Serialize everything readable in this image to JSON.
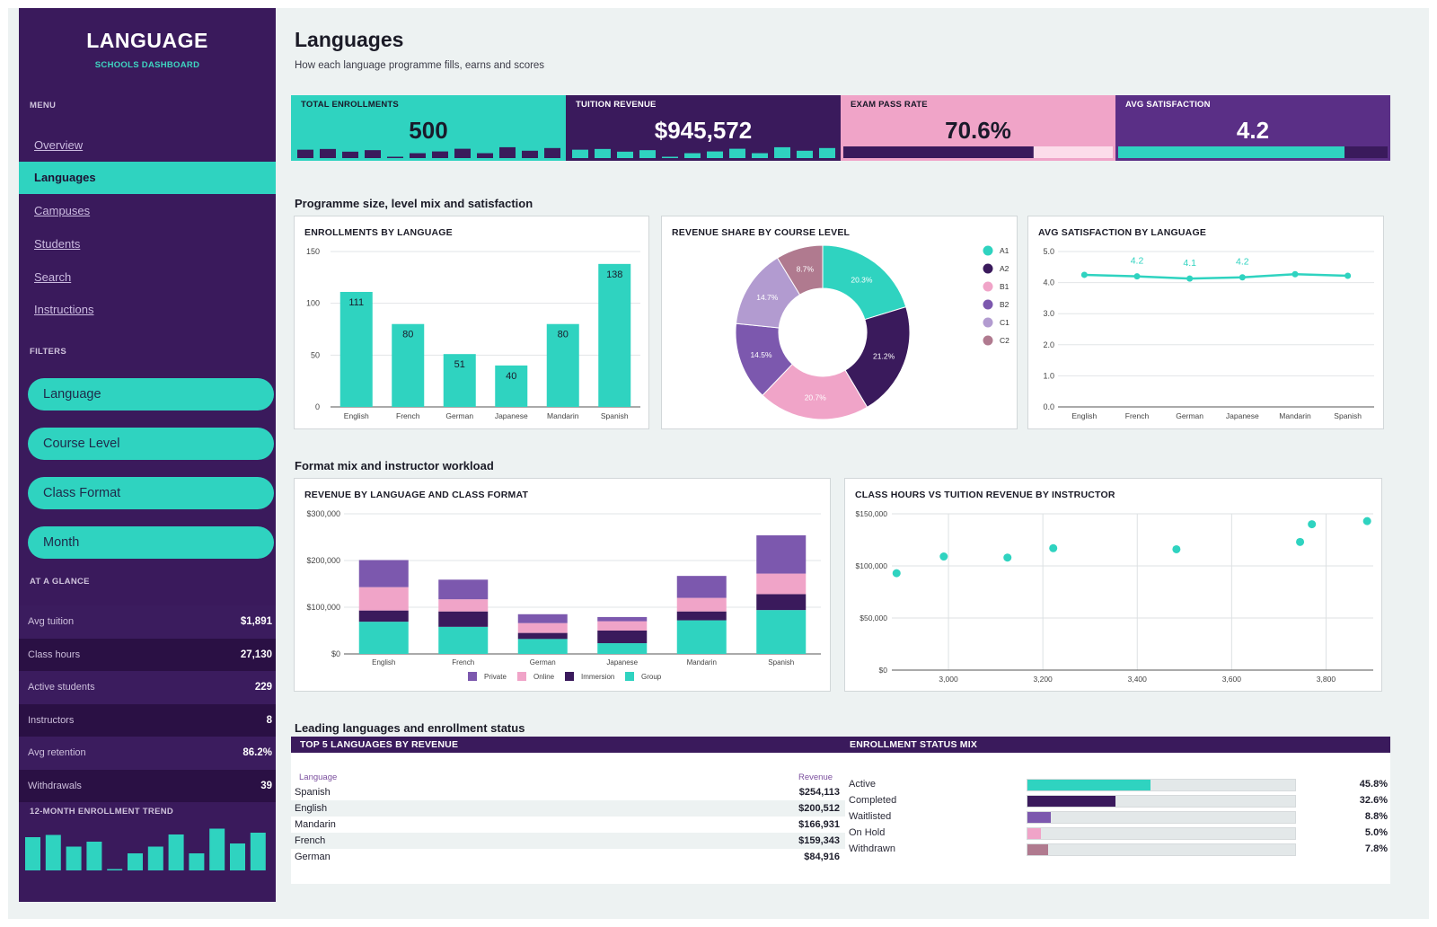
{
  "sidebar": {
    "brand": "LANGUAGE",
    "brand_sub": "SCHOOLS DASHBOARD",
    "menu_heading": "MENU",
    "nav": [
      {
        "label": "Overview",
        "active": false
      },
      {
        "label": "Languages",
        "active": true
      },
      {
        "label": "Campuses",
        "active": false
      },
      {
        "label": "Students",
        "active": false
      },
      {
        "label": "Search",
        "active": false
      },
      {
        "label": "Instructions",
        "active": false
      }
    ],
    "filters_heading": "FILTERS",
    "filters": [
      "Language",
      "Course Level",
      "Class Format",
      "Month"
    ],
    "glance_heading": "AT A GLANCE",
    "glance": [
      {
        "label": "Avg tuition",
        "value": "$1,891"
      },
      {
        "label": "Class hours",
        "value": "27,130"
      },
      {
        "label": "Active students",
        "value": "229"
      },
      {
        "label": "Instructors",
        "value": "8"
      },
      {
        "label": "Avg retention",
        "value": "86.2%"
      },
      {
        "label": "Withdrawals",
        "value": "39"
      }
    ],
    "trend_heading": "12-MONTH ENROLLMENT TREND",
    "trend_values": [
      0.74,
      0.79,
      0.53,
      0.64,
      0.02,
      0.38,
      0.53,
      0.8,
      0.38,
      0.93,
      0.6,
      0.84
    ]
  },
  "header": {
    "title": "Languages",
    "subtitle": "How each language programme fills, earns and scores"
  },
  "kpis": [
    {
      "label": "TOTAL ENROLLMENTS",
      "value": "500",
      "bg": "#2fd3c0",
      "fg": "#1a1a2a",
      "kind": "spark",
      "mark": "#3a1a5c",
      "spark": [
        0.72,
        0.78,
        0.55,
        0.68,
        0.05,
        0.42,
        0.57,
        0.8,
        0.42,
        0.93,
        0.63,
        0.86
      ]
    },
    {
      "label": "TUITION REVENUE",
      "value": "$945,572",
      "bg": "#3a1a5c",
      "fg": "#ffffff",
      "kind": "spark",
      "mark": "#2fd3c0",
      "spark": [
        0.72,
        0.78,
        0.55,
        0.68,
        0.05,
        0.42,
        0.57,
        0.8,
        0.42,
        0.93,
        0.63,
        0.86
      ]
    },
    {
      "label": "EXAM PASS RATE",
      "value": "70.6%",
      "bg": "#f0a4c8",
      "fg": "#1a1a2a",
      "kind": "progress",
      "mark": "#3a1a5c",
      "track": "#fcdcea",
      "progress": 0.706
    },
    {
      "label": "AVG SATISFACTION",
      "value": "4.2",
      "bg": "#5a2f86",
      "fg": "#ffffff",
      "kind": "progress",
      "mark": "#2fd3c0",
      "track": "#3a1a5c",
      "progress": 0.84
    }
  ],
  "sections": {
    "s1": "Programme size, level mix and satisfaction",
    "s2": "Format mix and instructor workload",
    "s3": "Leading languages and enrollment status"
  },
  "chart_data": [
    {
      "id": "enrollments",
      "type": "bar",
      "title": "ENROLLMENTS BY LANGUAGE",
      "categories": [
        "English",
        "French",
        "German",
        "Japanese",
        "Mandarin",
        "Spanish"
      ],
      "values": [
        111,
        80,
        51,
        40,
        80,
        138
      ],
      "ylim": [
        0,
        150
      ],
      "yticks": [
        "0",
        "50",
        "100",
        "150"
      ],
      "color": "#2fd3c0"
    },
    {
      "id": "revenue_share",
      "type": "pie",
      "title": "REVENUE SHARE BY COURSE LEVEL",
      "labels": [
        "A1",
        "A2",
        "B1",
        "B2",
        "C1",
        "C2"
      ],
      "values": [
        20.3,
        21.2,
        20.7,
        14.5,
        14.7,
        8.7
      ],
      "value_labels": [
        "20.3%",
        "21.2%",
        "20.7%",
        "14.5%",
        "14.7%",
        "8.7%"
      ],
      "colors": [
        "#2fd3c0",
        "#3a1a5c",
        "#f0a4c8",
        "#7c58ae",
        "#b29bd0",
        "#b07a8f"
      ],
      "legend": "right"
    },
    {
      "id": "satisfaction",
      "type": "line",
      "title": "AVG SATISFACTION BY LANGUAGE",
      "categories": [
        "English",
        "French",
        "German",
        "Japanese",
        "Mandarin",
        "Spanish"
      ],
      "values": [
        4.25,
        4.2,
        4.13,
        4.17,
        4.27,
        4.22
      ],
      "data_labels": [
        "",
        "4.2",
        "4.1",
        "4.2",
        "",
        ""
      ],
      "ylim": [
        0,
        5
      ],
      "yticks": [
        "0.0",
        "1.0",
        "2.0",
        "3.0",
        "4.0",
        "5.0"
      ],
      "color": "#2fd3c0"
    },
    {
      "id": "revenue_format",
      "type": "bar",
      "stacked": true,
      "title": "REVENUE BY LANGUAGE AND CLASS FORMAT",
      "categories": [
        "English",
        "French",
        "German",
        "Japanese",
        "Mandarin",
        "Spanish"
      ],
      "series": [
        {
          "name": "Group",
          "color": "#2fd3c0",
          "values": [
            69000,
            58000,
            32000,
            23000,
            72000,
            94000
          ]
        },
        {
          "name": "Immersion",
          "color": "#3a1a5c",
          "values": [
            24000,
            33000,
            13000,
            27000,
            19000,
            34000
          ]
        },
        {
          "name": "Online",
          "color": "#f0a4c8",
          "values": [
            50000,
            26000,
            21000,
            20000,
            29000,
            44000
          ]
        },
        {
          "name": "Private",
          "color": "#7c58ae",
          "values": [
            58000,
            42000,
            19000,
            9000,
            47000,
            82000
          ]
        }
      ],
      "legend_order": [
        "Private",
        "Online",
        "Immersion",
        "Group"
      ],
      "ylim": [
        0,
        300000
      ],
      "yticks": [
        "$0",
        "$100,000",
        "$200,000",
        "$300,000"
      ],
      "legend": "bottom"
    },
    {
      "id": "hours_vs_revenue",
      "type": "scatter",
      "title": "CLASS HOURS VS TUITION REVENUE BY INSTRUCTOR",
      "x": [
        2890,
        2990,
        3125,
        3222,
        3483,
        3745,
        3770,
        3887
      ],
      "y": [
        93000,
        109000,
        108000,
        117000,
        116000,
        123000,
        140000,
        143000
      ],
      "xlim": [
        2880,
        3900
      ],
      "ylim": [
        0,
        150000
      ],
      "xticks": [
        3000,
        3200,
        3400,
        3600,
        3800
      ],
      "xtick_labels": [
        "3,000",
        "3,200",
        "3,400",
        "3,600",
        "3,800"
      ],
      "yticks": [
        "$0",
        "$50,000",
        "$100,000",
        "$150,000"
      ],
      "color": "#2fd3c0"
    }
  ],
  "top_languages": {
    "title": "TOP 5 LANGUAGES BY REVENUE",
    "col_language": "Language",
    "col_revenue": "Revenue",
    "rows": [
      {
        "name": "Spanish",
        "value": "$254,113"
      },
      {
        "name": "English",
        "value": "$200,512"
      },
      {
        "name": "Mandarin",
        "value": "$166,931"
      },
      {
        "name": "French",
        "value": "$159,343"
      },
      {
        "name": "German",
        "value": "$84,916"
      }
    ]
  },
  "status_mix": {
    "title": "ENROLLMENT STATUS MIX",
    "rows": [
      {
        "name": "Active",
        "pct": "45.8%",
        "fraction": 0.458,
        "color": "#2fd3c0"
      },
      {
        "name": "Completed",
        "pct": "32.6%",
        "fraction": 0.326,
        "color": "#3a1a5c"
      },
      {
        "name": "Waitlisted",
        "pct": "8.8%",
        "fraction": 0.088,
        "color": "#7c58ae"
      },
      {
        "name": "On Hold",
        "pct": "5.0%",
        "fraction": 0.05,
        "color": "#f0a4c8"
      },
      {
        "name": "Withdrawn",
        "pct": "7.8%",
        "fraction": 0.078,
        "color": "#b07a8f"
      }
    ]
  }
}
